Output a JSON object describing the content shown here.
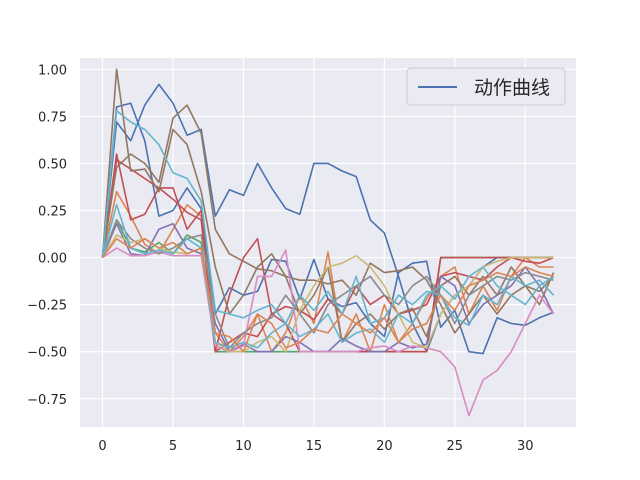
{
  "chart_data": {
    "type": "line",
    "x": [
      0,
      1,
      2,
      3,
      4,
      5,
      6,
      7,
      8,
      9,
      10,
      11,
      12,
      13,
      14,
      15,
      16,
      17,
      18,
      19,
      20,
      21,
      22,
      23,
      24,
      25,
      26,
      27,
      28,
      29,
      30,
      31,
      32
    ],
    "xlim": [
      -1.6,
      33.6
    ],
    "ylim": [
      -0.9,
      1.06
    ],
    "xticks": [
      0,
      5,
      10,
      15,
      20,
      25,
      30
    ],
    "yticks": [
      1.0,
      0.75,
      0.5,
      0.25,
      0.0,
      -0.25,
      -0.5,
      -0.75
    ],
    "ytick_labels": [
      "1.00",
      "0.75",
      "0.50",
      "0.25",
      "0.00",
      "−0.25",
      "−0.50",
      "−0.75"
    ],
    "grid": true,
    "background": "#eaeaf2",
    "legend": {
      "label": "动作曲线",
      "placement": "top-right",
      "color": "#4c72b0"
    },
    "series": [
      {
        "color": "#4c72b0",
        "values": [
          0,
          0.8,
          0.82,
          0.62,
          0.22,
          0.25,
          0.37,
          0.26,
          -0.3,
          -0.16,
          -0.2,
          -0.18,
          -0.01,
          -0.02,
          -0.22,
          -0.01,
          -0.22,
          -0.26,
          -0.24,
          -0.35,
          -0.42,
          -0.08,
          -0.03,
          -0.02,
          -0.37,
          -0.28,
          -0.5,
          -0.51,
          -0.32,
          -0.35,
          -0.36,
          -0.32,
          -0.29
        ]
      },
      {
        "color": "#4c72b0",
        "values": [
          0,
          0.72,
          0.62,
          0.81,
          0.92,
          0.82,
          0.65,
          0.68,
          0.22,
          0.36,
          0.33,
          0.5,
          0.37,
          0.26,
          0.23,
          0.5,
          0.5,
          0.46,
          0.43,
          0.2,
          0.13,
          -0.1,
          -0.35,
          -0.5,
          -0.3,
          -0.2,
          -0.15,
          -0.05,
          0,
          0,
          0,
          0,
          0
        ]
      },
      {
        "color": "#dd8452",
        "values": [
          0,
          0.35,
          0.22,
          0.07,
          0.02,
          0.15,
          0.28,
          0.22,
          -0.4,
          -0.5,
          -0.42,
          -0.3,
          -0.5,
          -0.4,
          -0.2,
          -0.35,
          0.03,
          -0.45,
          -0.3,
          -0.5,
          -0.25,
          -0.45,
          -0.35,
          -0.22,
          -0.1,
          -0.05,
          -0.3,
          -0.15,
          -0.28,
          -0.1,
          0,
          -0.05,
          -0.05
        ]
      },
      {
        "color": "#55a868",
        "values": [
          0,
          0.2,
          0.05,
          0.03,
          0.08,
          0.02,
          0.12,
          0.08,
          -0.5,
          -0.5,
          -0.5,
          -0.5,
          -0.5,
          -0.5,
          -0.5,
          -0.5,
          -0.5,
          -0.5,
          -0.5,
          -0.5,
          -0.5,
          -0.5,
          -0.5,
          -0.5,
          0,
          0,
          0,
          0,
          0,
          0,
          0,
          0,
          0
        ]
      },
      {
        "color": "#c44e52",
        "values": [
          0,
          0.55,
          0.2,
          0.23,
          0.37,
          0.37,
          0.15,
          0.25,
          -0.5,
          -0.2,
          0,
          0.1,
          -0.3,
          -0.35,
          -0.5,
          -0.5,
          -0.5,
          -0.5,
          -0.5,
          -0.5,
          -0.5,
          -0.5,
          -0.5,
          -0.5,
          0,
          0,
          0,
          0,
          0,
          0,
          0,
          0,
          0
        ]
      },
      {
        "color": "#c44e52",
        "values": [
          0,
          0.52,
          0.47,
          0.42,
          0.37,
          0.31,
          0.24,
          0.2,
          -0.5,
          -0.45,
          -0.4,
          -0.42,
          -0.3,
          -0.26,
          -0.28,
          -0.33,
          -0.22,
          -0.3,
          -0.15,
          -0.25,
          -0.2,
          -0.3,
          -0.28,
          -0.25,
          -0.1,
          -0.08,
          -0.1,
          -0.12,
          -0.05,
          0,
          -0.02,
          -0.03,
          0
        ]
      },
      {
        "color": "#8172b3",
        "values": [
          0,
          0.18,
          0.02,
          0.01,
          0.15,
          0.18,
          0.05,
          0.02,
          -0.35,
          -0.5,
          -0.46,
          -0.5,
          -0.5,
          -0.42,
          -0.45,
          -0.5,
          -0.5,
          -0.43,
          -0.47,
          -0.5,
          -0.5,
          -0.45,
          -0.48,
          -0.46,
          -0.1,
          -0.15,
          -0.35,
          -0.25,
          -0.2,
          -0.15,
          -0.05,
          -0.15,
          -0.3
        ]
      },
      {
        "color": "#937860",
        "values": [
          0,
          1.0,
          0.46,
          0.47,
          0.35,
          0.68,
          0.6,
          0.35,
          -0.05,
          -0.3,
          -0.2,
          -0.05,
          0.02,
          -0.1,
          -0.3,
          -0.2,
          -0.05,
          -0.45,
          -0.35,
          -0.3,
          -0.38,
          -0.3,
          -0.27,
          -0.42,
          -0.15,
          -0.1,
          -0.2,
          -0.1,
          -0.2,
          -0.05,
          -0.15,
          -0.25,
          -0.08
        ]
      },
      {
        "color": "#937860",
        "values": [
          0,
          0.48,
          0.55,
          0.5,
          0.4,
          0.74,
          0.81,
          0.66,
          0.15,
          0.02,
          -0.02,
          -0.06,
          -0.07,
          -0.1,
          -0.12,
          -0.12,
          -0.14,
          -0.12,
          -0.2,
          -0.03,
          -0.08,
          -0.07,
          -0.05,
          -0.12,
          -0.25,
          -0.4,
          -0.3,
          -0.2,
          -0.3,
          -0.2,
          -0.15,
          -0.18,
          -0.1
        ]
      },
      {
        "color": "#da8bc3",
        "values": [
          0,
          0.05,
          0.01,
          0.01,
          0.03,
          0.01,
          0.01,
          0.01,
          -0.47,
          -0.5,
          -0.47,
          -0.1,
          -0.1,
          0.04,
          -0.5,
          -0.5,
          -0.5,
          -0.5,
          -0.5,
          -0.48,
          -0.47,
          -0.5,
          -0.47,
          -0.48,
          -0.5,
          -0.58,
          -0.84,
          -0.65,
          -0.6,
          -0.5,
          -0.35,
          -0.2,
          -0.3
        ]
      },
      {
        "color": "#8c8c8c",
        "values": [
          0,
          0.2,
          0.1,
          0.05,
          0.02,
          0.05,
          0.1,
          0.12,
          -0.3,
          -0.48,
          -0.4,
          -0.35,
          -0.32,
          -0.2,
          -0.3,
          -0.4,
          -0.25,
          -0.2,
          -0.15,
          -0.1,
          -0.2,
          -0.25,
          -0.15,
          -0.1,
          -0.2,
          -0.35,
          -0.2,
          -0.15,
          -0.1,
          -0.12,
          -0.08,
          -0.1,
          -0.12
        ]
      },
      {
        "color": "#ccb974",
        "values": [
          0,
          0.12,
          0.08,
          0.1,
          0.05,
          0.03,
          0.02,
          0.05,
          -0.45,
          -0.5,
          -0.5,
          -0.45,
          -0.42,
          -0.5,
          -0.28,
          -0.15,
          -0.05,
          -0.03,
          0.01,
          -0.05,
          -0.15,
          -0.3,
          -0.45,
          -0.48,
          -0.3,
          -0.2,
          -0.15,
          -0.05,
          -0.02,
          0,
          0,
          0,
          0
        ]
      },
      {
        "color": "#64b5cd",
        "values": [
          0,
          0.78,
          0.72,
          0.68,
          0.6,
          0.45,
          0.42,
          0.3,
          -0.28,
          -0.3,
          -0.32,
          -0.28,
          -0.25,
          -0.35,
          -0.2,
          -0.28,
          -0.18,
          -0.3,
          -0.1,
          -0.35,
          -0.32,
          -0.2,
          -0.25,
          -0.18,
          -0.2,
          -0.32,
          -0.36,
          -0.2,
          -0.25,
          -0.1,
          -0.15,
          -0.12,
          -0.2
        ]
      },
      {
        "color": "#64b5cd",
        "values": [
          0,
          0.28,
          0.05,
          0.02,
          0.04,
          0.02,
          0.1,
          0.05,
          -0.45,
          -0.48,
          -0.45,
          -0.48,
          -0.4,
          -0.35,
          -0.42,
          -0.38,
          -0.3,
          -0.45,
          -0.4,
          -0.38,
          -0.45,
          -0.3,
          -0.35,
          -0.2,
          -0.15,
          -0.22,
          -0.1,
          -0.05,
          -0.15,
          -0.2,
          -0.25,
          -0.15,
          -0.1
        ]
      },
      {
        "color": "#dd8452",
        "values": [
          0,
          0.1,
          0.05,
          0.1,
          0.05,
          0.08,
          0.02,
          0.05,
          -0.4,
          -0.42,
          -0.5,
          -0.3,
          -0.35,
          -0.48,
          -0.45,
          -0.38,
          -0.4,
          -0.3,
          -0.35,
          -0.4,
          -0.32,
          -0.45,
          -0.38,
          -0.35,
          -0.2,
          -0.28,
          -0.15,
          -0.12,
          -0.08,
          -0.1,
          -0.05,
          -0.08,
          -0.1
        ]
      }
    ]
  }
}
